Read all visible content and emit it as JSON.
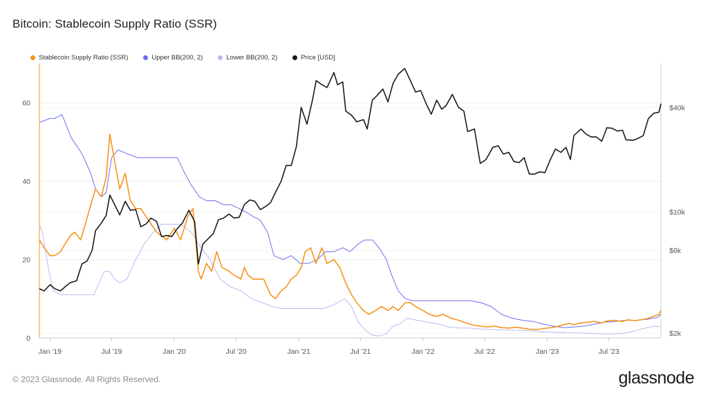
{
  "title": "Bitcoin: Stablecoin Supply Ratio (SSR)",
  "footer": "© 2023 Glassnode. All Rights Reserved.",
  "brand": "glassnode",
  "legend": [
    {
      "label": "Stablecoin Supply Ratio (SSR)",
      "color": "#f7931a"
    },
    {
      "label": "Upper BB(200, 2)",
      "color": "#6c6cf0"
    },
    {
      "label": "Lower BB(200, 2)",
      "color": "#b9b9f5"
    },
    {
      "label": "Price [USD]",
      "color": "#1a1a1a"
    }
  ],
  "chart_data": {
    "type": "line",
    "title": "Bitcoin: Stablecoin Supply Ratio (SSR)",
    "x_tick_labels": [
      "Jan '19",
      "Jul '19",
      "Jan '20",
      "Jul '20",
      "Jan '21",
      "Jul '21",
      "Jan '22",
      "Jul '22",
      "Jan '23",
      "Jul '23"
    ],
    "y_left_ticks": [
      0,
      20,
      40,
      60
    ],
    "y_left_range": [
      0,
      70
    ],
    "y_right_ticks": [
      {
        "label": "$2k",
        "value": 2000
      },
      {
        "label": "$6k",
        "value": 6000
      },
      {
        "label": "$10k",
        "value": 10000
      },
      {
        "label": "$40k",
        "value": 40000
      }
    ],
    "y_right_scale": "log",
    "legend_position": "top-left",
    "x_range": [
      "2018-12-01",
      "2023-12-01"
    ],
    "series": [
      {
        "name": "Stablecoin Supply Ratio (SSR)",
        "color": "#f7931a",
        "axis": "left",
        "x": [
          "2018-12-01",
          "2018-12-15",
          "2019-01-01",
          "2019-01-15",
          "2019-02-01",
          "2019-02-15",
          "2019-03-01",
          "2019-03-15",
          "2019-04-01",
          "2019-04-15",
          "2019-05-01",
          "2019-05-15",
          "2019-06-01",
          "2019-06-15",
          "2019-06-26",
          "2019-07-10",
          "2019-07-25",
          "2019-08-10",
          "2019-08-25",
          "2019-09-10",
          "2019-09-25",
          "2019-10-10",
          "2019-10-25",
          "2019-11-10",
          "2019-11-25",
          "2019-12-10",
          "2020-01-01",
          "2020-01-20",
          "2020-02-10",
          "2020-02-25",
          "2020-03-12",
          "2020-03-20",
          "2020-04-05",
          "2020-04-20",
          "2020-05-05",
          "2020-05-20",
          "2020-06-10",
          "2020-06-25",
          "2020-07-15",
          "2020-07-25",
          "2020-08-05",
          "2020-08-20",
          "2020-09-05",
          "2020-09-20",
          "2020-10-10",
          "2020-10-25",
          "2020-11-10",
          "2020-11-25",
          "2020-12-10",
          "2020-12-25",
          "2021-01-08",
          "2021-01-20",
          "2021-02-05",
          "2021-02-20",
          "2021-03-10",
          "2021-03-25",
          "2021-04-14",
          "2021-05-01",
          "2021-05-19",
          "2021-06-05",
          "2021-06-20",
          "2021-07-10",
          "2021-07-25",
          "2021-08-15",
          "2021-09-01",
          "2021-09-20",
          "2021-10-05",
          "2021-10-20",
          "2021-11-10",
          "2021-11-25",
          "2021-12-10",
          "2022-01-01",
          "2022-01-20",
          "2022-02-10",
          "2022-03-01",
          "2022-03-25",
          "2022-04-15",
          "2022-05-01",
          "2022-05-15",
          "2022-06-01",
          "2022-06-18",
          "2022-07-10",
          "2022-08-01",
          "2022-08-20",
          "2022-09-10",
          "2022-10-01",
          "2022-10-20",
          "2022-11-10",
          "2022-12-01",
          "2022-12-20",
          "2023-01-10",
          "2023-01-25",
          "2023-02-15",
          "2023-03-05",
          "2023-03-20",
          "2023-04-10",
          "2023-05-01",
          "2023-05-20",
          "2023-06-10",
          "2023-06-25",
          "2023-07-15",
          "2023-08-10",
          "2023-08-25",
          "2023-09-15",
          "2023-10-10",
          "2023-10-25",
          "2023-11-10",
          "2023-11-25",
          "2023-12-01"
        ],
        "values": [
          25,
          23,
          21,
          21,
          22,
          24,
          26,
          27,
          25,
          29,
          34,
          38,
          36,
          41,
          52,
          45,
          38,
          42,
          35,
          33,
          33,
          31,
          29,
          27,
          26,
          25,
          28,
          25,
          31,
          33,
          17,
          15,
          19,
          17,
          22,
          18,
          17,
          16,
          15,
          18,
          16,
          15,
          15,
          15,
          11,
          10,
          12,
          13,
          15,
          16,
          18,
          22,
          23,
          19,
          23,
          19,
          20,
          18,
          14,
          11,
          9,
          7,
          6,
          7,
          8,
          7,
          8,
          7,
          9,
          9,
          8,
          7,
          6,
          5.5,
          6,
          5,
          4.5,
          4,
          3.6,
          3.2,
          3,
          2.8,
          3,
          2.6,
          2.5,
          2.7,
          2.5,
          2.2,
          2.1,
          2.4,
          2.6,
          2.8,
          3.3,
          3.7,
          3.4,
          3.8,
          4,
          4.2,
          3.8,
          4.3,
          4.5,
          4.2,
          4.6,
          4.4,
          4.7,
          5,
          5.5,
          6,
          7
        ]
      },
      {
        "name": "Upper BB(200, 2)",
        "color": "#6c6cf0",
        "axis": "left",
        "x": [
          "2018-12-01",
          "2019-01-01",
          "2019-01-15",
          "2019-02-05",
          "2019-03-05",
          "2019-04-05",
          "2019-05-01",
          "2019-05-15",
          "2019-06-01",
          "2019-06-15",
          "2019-07-01",
          "2019-07-20",
          "2019-08-15",
          "2019-09-15",
          "2019-10-15",
          "2019-11-15",
          "2019-12-15",
          "2020-01-10",
          "2020-02-01",
          "2020-02-20",
          "2020-03-15",
          "2020-04-05",
          "2020-05-01",
          "2020-05-25",
          "2020-06-15",
          "2020-07-10",
          "2020-08-01",
          "2020-08-20",
          "2020-09-10",
          "2020-10-01",
          "2020-10-20",
          "2020-11-15",
          "2020-12-10",
          "2021-01-05",
          "2021-01-30",
          "2021-02-25",
          "2021-03-20",
          "2021-04-15",
          "2021-05-10",
          "2021-06-01",
          "2021-06-25",
          "2021-07-15",
          "2021-08-05",
          "2021-08-25",
          "2021-09-15",
          "2021-10-01",
          "2021-10-20",
          "2021-11-10",
          "2021-12-01",
          "2021-12-25",
          "2022-01-25",
          "2022-02-20",
          "2022-03-20",
          "2022-04-20",
          "2022-05-20",
          "2022-06-20",
          "2022-07-20",
          "2022-08-20",
          "2022-09-20",
          "2022-10-20",
          "2022-11-20",
          "2022-12-20",
          "2023-01-20",
          "2023-02-20",
          "2023-03-20",
          "2023-04-20",
          "2023-05-20",
          "2023-06-20",
          "2023-07-20",
          "2023-08-20",
          "2023-09-20",
          "2023-10-20",
          "2023-11-20",
          "2023-12-01"
        ],
        "values": [
          55,
          56,
          56,
          57,
          51,
          47,
          42,
          38,
          36,
          37,
          46,
          48,
          47,
          46,
          46,
          46,
          46,
          46,
          42,
          39,
          36,
          35,
          35,
          34,
          34,
          33,
          32,
          31,
          30,
          27,
          21,
          20,
          21,
          19,
          19,
          20,
          22,
          22,
          23,
          22,
          24,
          25,
          25,
          23,
          20,
          16,
          12,
          10,
          9.5,
          9.5,
          9.5,
          9.5,
          9.5,
          9.5,
          9.5,
          9,
          8,
          6,
          5,
          4.5,
          4.2,
          3.5,
          3,
          2.6,
          2.8,
          3,
          3.5,
          4,
          4.2,
          4.5,
          4.5,
          4.7,
          5.2,
          6
        ]
      },
      {
        "name": "Lower BB(200, 2)",
        "color": "#b9b9f5",
        "axis": "left",
        "x": [
          "2018-12-01",
          "2018-12-10",
          "2018-12-25",
          "2019-01-10",
          "2019-02-01",
          "2019-03-01",
          "2019-04-01",
          "2019-04-20",
          "2019-05-10",
          "2019-05-25",
          "2019-06-10",
          "2019-06-25",
          "2019-07-10",
          "2019-07-25",
          "2019-08-15",
          "2019-09-10",
          "2019-10-05",
          "2019-11-01",
          "2019-11-25",
          "2019-12-20",
          "2020-01-20",
          "2020-02-20",
          "2020-03-20",
          "2020-04-15",
          "2020-05-15",
          "2020-06-15",
          "2020-07-15",
          "2020-08-15",
          "2020-09-15",
          "2020-10-15",
          "2020-11-15",
          "2020-12-15",
          "2021-01-15",
          "2021-02-15",
          "2021-03-15",
          "2021-04-15",
          "2021-05-15",
          "2021-06-05",
          "2021-06-25",
          "2021-07-15",
          "2021-08-05",
          "2021-08-25",
          "2021-09-15",
          "2021-10-05",
          "2021-10-25",
          "2021-11-15",
          "2021-12-15",
          "2022-01-15",
          "2022-02-15",
          "2022-03-15",
          "2022-04-15",
          "2022-05-15",
          "2022-06-15",
          "2022-07-15",
          "2022-08-15",
          "2022-09-15",
          "2022-10-15",
          "2022-11-15",
          "2022-12-15",
          "2023-01-15",
          "2023-02-15",
          "2023-03-15",
          "2023-04-15",
          "2023-05-15",
          "2023-06-15",
          "2023-07-15",
          "2023-08-15",
          "2023-09-15",
          "2023-10-15",
          "2023-11-15",
          "2023-12-01"
        ],
        "values": [
          29,
          27,
          19,
          12,
          11,
          11,
          11,
          11,
          11,
          14,
          17,
          17,
          15,
          14,
          15,
          20,
          24,
          27,
          29,
          29,
          29,
          27,
          23,
          20,
          15,
          13,
          12,
          10,
          9,
          8,
          7.5,
          7.5,
          7.5,
          7.5,
          7.5,
          8.5,
          10,
          8,
          4,
          2,
          0.7,
          0.5,
          1,
          3,
          3.5,
          5,
          4.5,
          4,
          3.5,
          2.8,
          2.5,
          2.5,
          2.3,
          2.2,
          2,
          2,
          1.9,
          1.8,
          1.5,
          1.5,
          1.3,
          1.3,
          1.2,
          1.1,
          1,
          1,
          1.2,
          1.8,
          2.5,
          3,
          2.8
        ]
      },
      {
        "name": "Price [USD]",
        "color": "#1a1a1a",
        "axis": "right",
        "x": [
          "2018-12-01",
          "2018-12-15",
          "2019-01-01",
          "2019-01-15",
          "2019-02-01",
          "2019-02-15",
          "2019-03-01",
          "2019-03-20",
          "2019-04-05",
          "2019-04-20",
          "2019-05-05",
          "2019-05-15",
          "2019-05-30",
          "2019-06-15",
          "2019-06-26",
          "2019-07-10",
          "2019-07-25",
          "2019-08-10",
          "2019-08-25",
          "2019-09-10",
          "2019-09-25",
          "2019-10-10",
          "2019-10-25",
          "2019-11-10",
          "2019-11-25",
          "2019-12-10",
          "2019-12-25",
          "2020-01-10",
          "2020-01-25",
          "2020-02-13",
          "2020-03-01",
          "2020-03-12",
          "2020-03-25",
          "2020-04-10",
          "2020-04-25",
          "2020-05-10",
          "2020-05-25",
          "2020-06-10",
          "2020-06-25",
          "2020-07-10",
          "2020-07-25",
          "2020-08-10",
          "2020-08-25",
          "2020-09-10",
          "2020-09-25",
          "2020-10-10",
          "2020-10-25",
          "2020-11-10",
          "2020-11-25",
          "2020-12-10",
          "2020-12-25",
          "2021-01-08",
          "2021-01-25",
          "2021-02-10",
          "2021-02-21",
          "2021-03-10",
          "2021-03-25",
          "2021-04-14",
          "2021-04-25",
          "2021-05-10",
          "2021-05-19",
          "2021-06-05",
          "2021-06-20",
          "2021-07-10",
          "2021-07-21",
          "2021-08-05",
          "2021-08-20",
          "2021-09-05",
          "2021-09-20",
          "2021-10-05",
          "2021-10-20",
          "2021-11-08",
          "2021-11-25",
          "2021-12-10",
          "2021-12-25",
          "2022-01-10",
          "2022-01-25",
          "2022-02-10",
          "2022-02-25",
          "2022-03-10",
          "2022-03-28",
          "2022-04-15",
          "2022-05-01",
          "2022-05-12",
          "2022-06-01",
          "2022-06-18",
          "2022-07-05",
          "2022-07-25",
          "2022-08-10",
          "2022-08-25",
          "2022-09-10",
          "2022-09-25",
          "2022-10-10",
          "2022-10-25",
          "2022-11-09",
          "2022-11-25",
          "2022-12-10",
          "2022-12-25",
          "2023-01-10",
          "2023-01-25",
          "2023-02-10",
          "2023-02-25",
          "2023-03-10",
          "2023-03-20",
          "2023-04-10",
          "2023-04-25",
          "2023-05-10",
          "2023-05-25",
          "2023-06-10",
          "2023-06-25",
          "2023-07-10",
          "2023-07-25",
          "2023-08-10",
          "2023-08-20",
          "2023-09-10",
          "2023-09-25",
          "2023-10-10",
          "2023-10-25",
          "2023-11-10",
          "2023-11-25",
          "2023-12-01"
        ],
        "values": [
          3600,
          3500,
          3800,
          3600,
          3500,
          3700,
          3900,
          4000,
          5000,
          5200,
          6000,
          7800,
          8500,
          9500,
          12500,
          11000,
          9600,
          11500,
          10200,
          10300,
          8200,
          8500,
          9200,
          8800,
          7200,
          7300,
          7200,
          8000,
          8600,
          10200,
          8800,
          5000,
          6500,
          7000,
          7500,
          9000,
          9200,
          9700,
          9200,
          9300,
          11000,
          11700,
          11500,
          10300,
          10700,
          11300,
          13000,
          15000,
          18500,
          18500,
          23800,
          40000,
          32000,
          44000,
          57000,
          54000,
          52000,
          63500,
          54000,
          56000,
          38000,
          36000,
          33000,
          34000,
          30000,
          44000,
          47000,
          51000,
          43000,
          55000,
          62000,
          67000,
          57000,
          49000,
          50000,
          42000,
          36500,
          44000,
          39000,
          41000,
          47500,
          40000,
          38000,
          29000,
          30000,
          19000,
          20000,
          23500,
          24000,
          21500,
          22000,
          19500,
          19200,
          20500,
          16500,
          16500,
          17000,
          16800,
          20000,
          23000,
          22000,
          23500,
          20000,
          27500,
          30000,
          28000,
          27000,
          27000,
          25500,
          30500,
          30300,
          29200,
          29500,
          26000,
          25800,
          26500,
          27500,
          34500,
          37000,
          37500,
          42000
        ]
      }
    ]
  }
}
